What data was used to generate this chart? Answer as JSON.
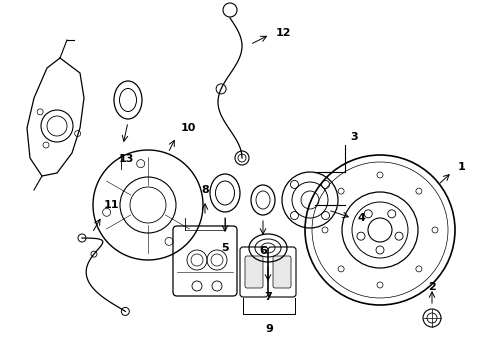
{
  "bg_color": "#ffffff",
  "line_color": "#000000",
  "fig_width": 4.89,
  "fig_height": 3.6,
  "dpi": 100,
  "label_fontsize": 8,
  "label_fontweight": "bold"
}
